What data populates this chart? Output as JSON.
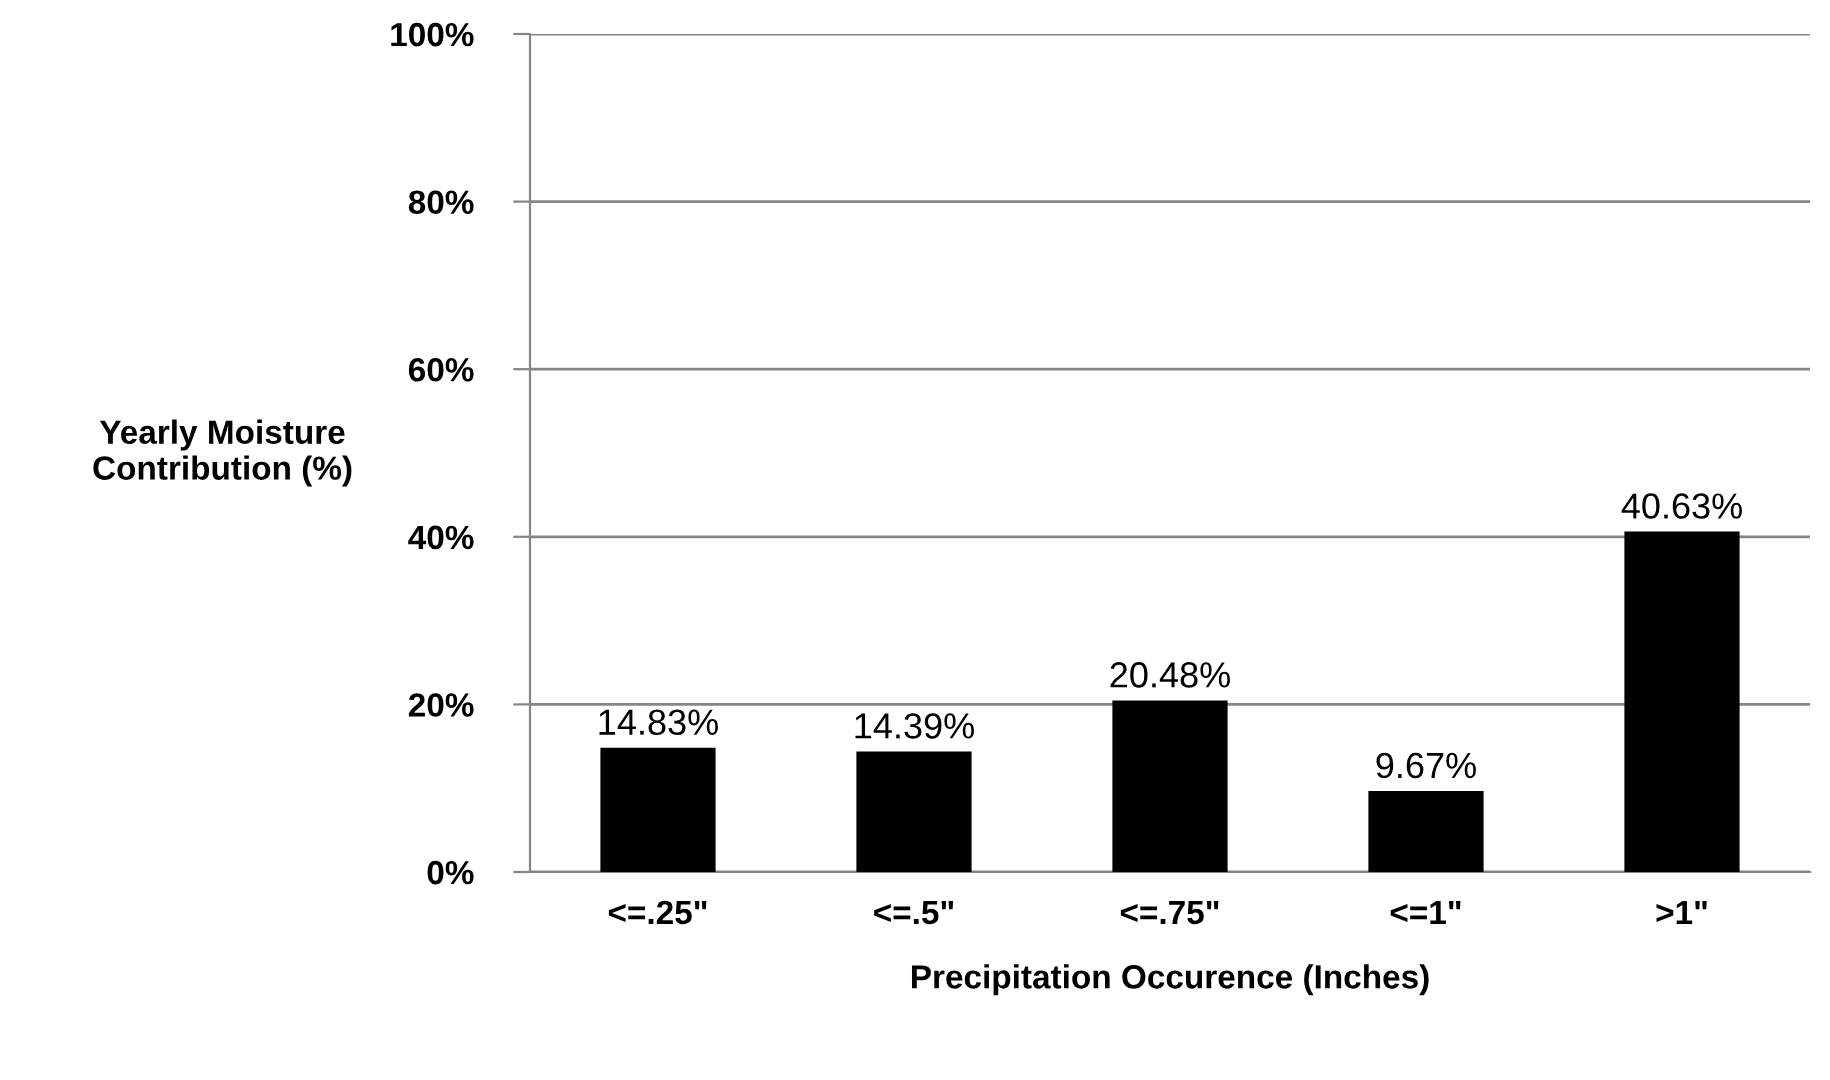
{
  "chart_data": {
    "type": "bar",
    "categories": [
      "<=.25\"",
      "<=.5\"",
      "<=.75\"",
      "<=1\"",
      ">1\""
    ],
    "values": [
      14.83,
      14.39,
      20.48,
      9.67,
      40.63
    ],
    "value_labels": [
      "14.83%",
      "14.39%",
      "20.48%",
      "9.67%",
      "40.63%"
    ],
    "color": "#000000",
    "xlabel": "Precipitation Occurence (Inches)",
    "ylabel": "Yearly Moisture\nContribution (%)",
    "ylim": [
      0,
      100
    ],
    "yticks": [
      {
        "value": 0,
        "label": "0%"
      },
      {
        "value": 20,
        "label": "20%"
      },
      {
        "value": 40,
        "label": "40%"
      },
      {
        "value": 60,
        "label": "60%"
      },
      {
        "value": 80,
        "label": "80%"
      },
      {
        "value": 100,
        "label": "100%"
      }
    ],
    "grid": "y",
    "legend": false
  }
}
